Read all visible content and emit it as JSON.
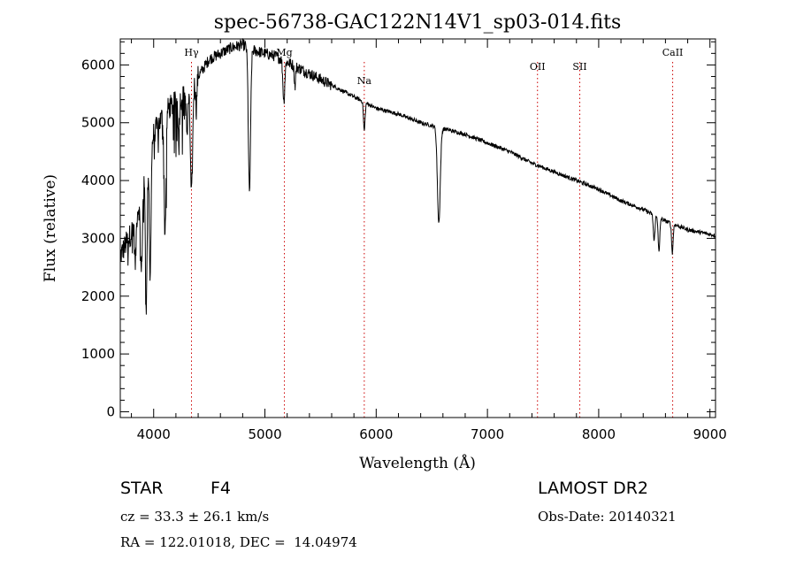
{
  "chart_data": {
    "type": "line",
    "title": "spec-56738-GAC122N14V1_sp03-014.fits",
    "xlabel": "Wavelength (Å)",
    "ylabel": "Flux (relative)",
    "xlim": [
      3700,
      9050
    ],
    "ylim": [
      -100,
      6450
    ],
    "xticks": [
      4000,
      5000,
      6000,
      7000,
      8000,
      9000
    ],
    "yticks": [
      0,
      1000,
      2000,
      3000,
      4000,
      5000,
      6000
    ],
    "grid": false,
    "line_color": "#000000",
    "marker_color": "#cc0000",
    "continuum": {
      "x": [
        3700,
        3800,
        3900,
        4000,
        4100,
        4200,
        4300,
        4400,
        4500,
        4600,
        4700,
        4800,
        4900,
        5000,
        5100,
        5200,
        5300,
        5400,
        5500,
        5600,
        5700,
        5800,
        5900,
        6000,
        6200,
        6400,
        6600,
        6800,
        7000,
        7200,
        7400,
        7600,
        7800,
        8000,
        8200,
        8400,
        8600,
        8800,
        9050
      ],
      "y": [
        2700,
        3100,
        3800,
        4800,
        5200,
        5350,
        5500,
        5800,
        6100,
        6200,
        6300,
        6350,
        6250,
        6200,
        6150,
        6050,
        5950,
        5850,
        5750,
        5650,
        5550,
        5450,
        5350,
        5250,
        5150,
        5000,
        4900,
        4800,
        4650,
        4500,
        4300,
        4150,
        4000,
        3850,
        3650,
        3500,
        3300,
        3150,
        3050
      ]
    },
    "absorption_features": [
      {
        "x": 3835,
        "depth": 800,
        "width": 10
      },
      {
        "x": 3889,
        "depth": 1300,
        "width": 12
      },
      {
        "x": 3934,
        "depth": 2300,
        "width": 10
      },
      {
        "x": 3969,
        "depth": 2200,
        "width": 10
      },
      {
        "x": 4102,
        "depth": 2100,
        "width": 12
      },
      {
        "x": 4227,
        "depth": 500,
        "width": 8
      },
      {
        "x": 4300,
        "depth": 700,
        "width": 10
      },
      {
        "x": 4340,
        "depth": 1900,
        "width": 14
      },
      {
        "x": 4383,
        "depth": 500,
        "width": 8
      },
      {
        "x": 4861,
        "depth": 2500,
        "width": 14
      },
      {
        "x": 5170,
        "depth": 700,
        "width": 12
      },
      {
        "x": 5270,
        "depth": 350,
        "width": 8
      },
      {
        "x": 5893,
        "depth": 500,
        "width": 10
      },
      {
        "x": 6563,
        "depth": 1650,
        "width": 18
      },
      {
        "x": 8498,
        "depth": 450,
        "width": 10
      },
      {
        "x": 8542,
        "depth": 600,
        "width": 10
      },
      {
        "x": 8662,
        "depth": 500,
        "width": 10
      }
    ],
    "line_markers": [
      {
        "label": "Hγ",
        "x": 4340
      },
      {
        "label": "Mg",
        "x": 5175
      },
      {
        "label": "Na",
        "x": 5893
      },
      {
        "label": "OII",
        "x": 7450
      },
      {
        "label": "SII",
        "x": 7830
      },
      {
        "label": "CaII",
        "x": 8665
      }
    ]
  },
  "info": {
    "object_class": "STAR",
    "subclass": "F4",
    "survey": "LAMOST DR2",
    "cz": "cz = 33.3 ± 26.1 km/s",
    "obs_date": "Obs-Date: 20140321",
    "coords": "RA = 122.01018, DEC =  14.04974"
  }
}
